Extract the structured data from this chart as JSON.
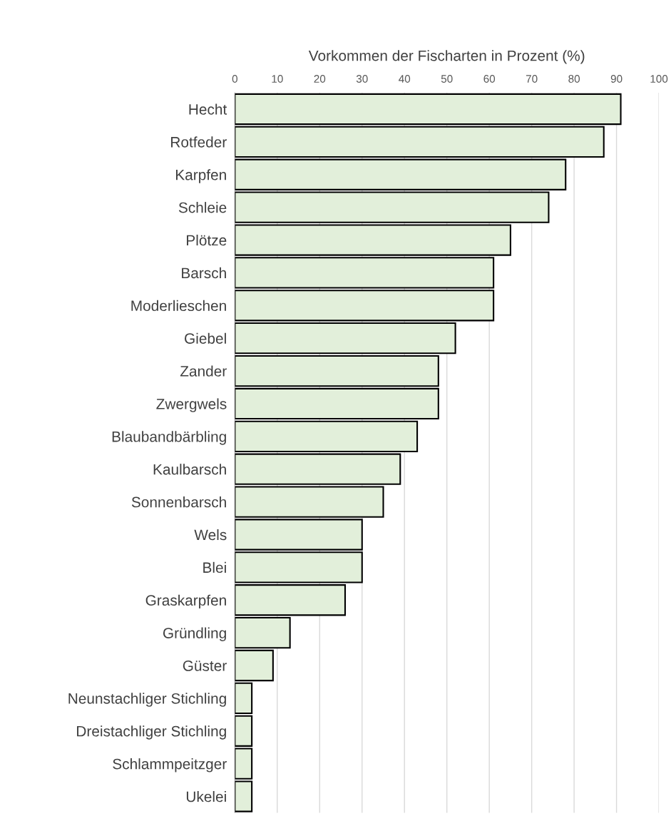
{
  "chart_data": {
    "type": "bar",
    "orientation": "horizontal",
    "xlabel": "Vorkommen der Fischarten in Prozent (%)",
    "categories": [
      "Hecht",
      "Rotfeder",
      "Karpfen",
      "Schleie",
      "Plötze",
      "Barsch",
      "Moderlieschen",
      "Giebel",
      "Zander",
      "Zwergwels",
      "Blaubandbärbling",
      "Kaulbarsch",
      "Sonnenbarsch",
      "Wels",
      "Blei",
      "Graskarpfen",
      "Gründling",
      "Güster",
      "Neunstachliger Stichling",
      "Dreistachliger Stichling",
      "Schlammpeitzger",
      "Ukelei"
    ],
    "values": [
      91,
      87,
      78,
      74,
      65,
      61,
      61,
      52,
      48,
      48,
      43,
      39,
      35,
      30,
      30,
      26,
      13,
      9,
      4,
      4,
      4,
      4
    ],
    "color": "#e2efda",
    "xlim": [
      0,
      100
    ],
    "xticks": [
      0,
      10,
      20,
      30,
      40,
      50,
      60,
      70,
      80,
      90,
      100
    ],
    "grid": "x"
  }
}
